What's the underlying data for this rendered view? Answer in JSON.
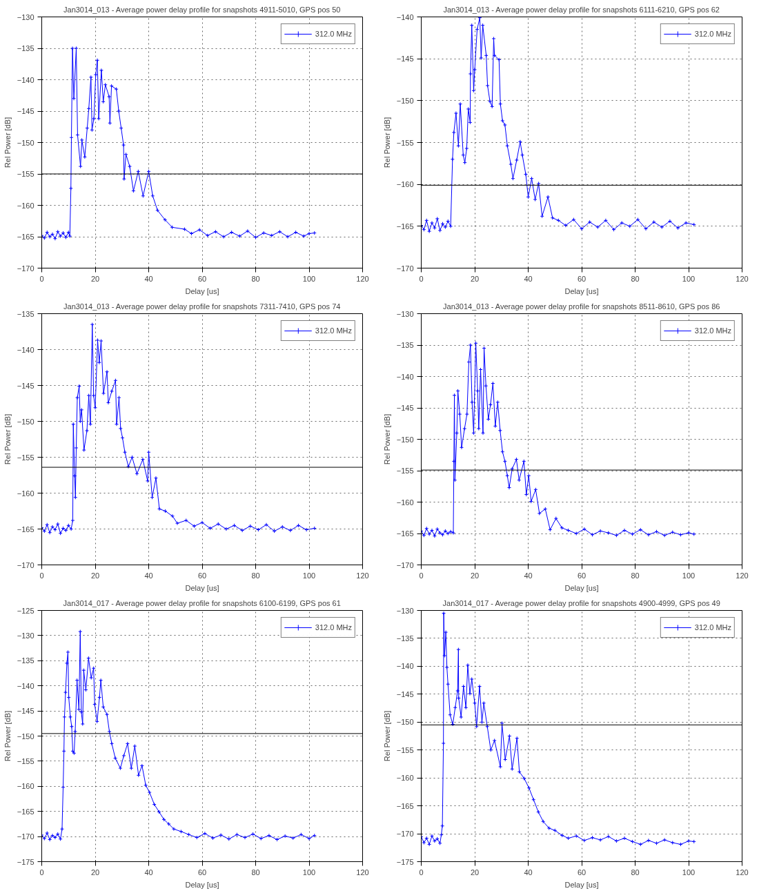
{
  "chart_data": [
    {
      "type": "line",
      "title": "Jan3014_013 - Average power delay profile for snapshots 4911-5010, GPS pos 50",
      "xlabel": "Delay [us]",
      "ylabel": "Rel Power [dB]",
      "xlim": [
        0,
        120
      ],
      "xticks": [
        0,
        20,
        40,
        60,
        80,
        100,
        120
      ],
      "ylim": [
        -170,
        -130
      ],
      "yticks": [
        -170,
        -165,
        -160,
        -155,
        -150,
        -145,
        -140,
        -135,
        -130
      ],
      "grid": true,
      "legend": "top right",
      "marker": "cross",
      "line_style": "solid",
      "ref_lines": [
        {
          "axis": "y",
          "value": -155,
          "color": "#000000"
        }
      ],
      "series": [
        {
          "name": "312.0 MHz",
          "color": "#0000ff",
          "x": [
            0,
            1,
            2,
            3,
            4,
            5,
            6,
            7,
            8,
            9,
            10,
            10.5,
            10.9,
            11.1,
            11.5,
            12,
            12.9,
            13.4,
            14.5,
            15,
            16.1,
            17,
            17.6,
            18.4,
            18.8,
            19.5,
            20.2,
            20.8,
            21.3,
            22.3,
            23,
            23.8,
            25.2,
            25.5,
            26.1,
            27.9,
            28.8,
            29.7,
            30.6,
            30.8,
            31.5,
            32.9,
            34.3,
            36.1,
            37.9,
            40,
            41.5,
            43.3,
            46.1,
            48.8,
            53.4,
            56,
            59,
            62,
            65,
            68,
            71,
            74,
            77,
            80,
            83,
            86,
            89,
            92,
            95,
            98,
            100,
            102
          ],
          "values": [
            -164.8,
            -165.2,
            -164.3,
            -165,
            -164.6,
            -165.3,
            -164.2,
            -164.9,
            -164.4,
            -165.1,
            -164.3,
            -164.9,
            -157.3,
            -149.2,
            -135,
            -143,
            -135,
            -148.8,
            -153.8,
            -149.6,
            -152.3,
            -147.7,
            -144.6,
            -139.6,
            -148,
            -146.2,
            -139.2,
            -136.9,
            -146.2,
            -138.5,
            -143.5,
            -140.8,
            -142.7,
            -146.9,
            -141,
            -141.5,
            -145,
            -147.7,
            -150.4,
            -155.8,
            -151.9,
            -153.8,
            -157.7,
            -154.6,
            -158.5,
            -154.6,
            -158.5,
            -160.8,
            -162.3,
            -163.5,
            -163.8,
            -164.5,
            -163.9,
            -164.8,
            -164.2,
            -165,
            -164.3,
            -164.9,
            -164.1,
            -165.1,
            -164.4,
            -164.8,
            -164.2,
            -165,
            -164.3,
            -164.9,
            -164.5,
            -164.4
          ]
        }
      ]
    },
    {
      "type": "line",
      "title": "Jan3014_013 - Average power delay profile for snapshots 6111-6210, GPS pos 62",
      "xlabel": "Delay [us]",
      "ylabel": "Rel Power [dB]",
      "xlim": [
        0,
        120
      ],
      "xticks": [
        0,
        20,
        40,
        60,
        80,
        100,
        120
      ],
      "ylim": [
        -170,
        -140
      ],
      "yticks": [
        -170,
        -165,
        -160,
        -155,
        -150,
        -145,
        -140
      ],
      "grid": true,
      "legend": "top right",
      "marker": "cross",
      "line_style": "solid",
      "ref_lines": [
        {
          "axis": "y",
          "value": -160.1,
          "color": "#000000"
        }
      ],
      "series": [
        {
          "name": "312.0 MHz",
          "color": "#0000ff",
          "x": [
            0,
            1,
            2,
            3,
            4,
            5,
            6,
            7,
            8,
            9,
            10,
            11,
            11.7,
            12.2,
            13,
            13.9,
            14.6,
            15.7,
            16.3,
            17,
            17.6,
            18.3,
            18.4,
            18.9,
            19.6,
            20,
            20.9,
            21.9,
            22.4,
            23,
            24.3,
            24.8,
            25.7,
            26.5,
            27.1,
            27.4,
            29.1,
            29.6,
            30.4,
            31.3,
            32.2,
            33.5,
            34.3,
            35.7,
            37,
            37.8,
            39.1,
            40,
            41.3,
            42.6,
            43.9,
            45.2,
            47.4,
            49.1,
            51.3,
            54,
            57,
            60,
            63,
            66,
            69,
            72,
            75,
            78,
            81,
            84,
            87,
            90,
            93,
            96,
            99,
            102
          ],
          "values": [
            -164.9,
            -165.4,
            -164.3,
            -165.6,
            -164.6,
            -165.2,
            -164.1,
            -165.5,
            -164.7,
            -165.1,
            -164.4,
            -165,
            -157,
            -153.8,
            -151.5,
            -155.4,
            -150.4,
            -156.5,
            -157.4,
            -155.7,
            -151,
            -152.6,
            -146.8,
            -141,
            -148.8,
            -146.3,
            -141.5,
            -140.1,
            -144.9,
            -141,
            -144.6,
            -148.2,
            -150.1,
            -150.7,
            -142.6,
            -144.6,
            -145.1,
            -150.4,
            -152.4,
            -152.9,
            -155.4,
            -157.6,
            -159.3,
            -157.1,
            -154.9,
            -156.5,
            -158.8,
            -161.5,
            -159.3,
            -161.8,
            -159.9,
            -163.8,
            -161.5,
            -164,
            -164.3,
            -164.9,
            -164.2,
            -165.3,
            -164.5,
            -165.1,
            -164.3,
            -165.4,
            -164.6,
            -165,
            -164.2,
            -165.3,
            -164.5,
            -165.1,
            -164.4,
            -165.2,
            -164.6,
            -164.8
          ]
        }
      ]
    },
    {
      "type": "line",
      "title": "Jan3014_013 - Average power delay profile for snapshots 7311-7410, GPS pos 74",
      "xlabel": "Delay [us]",
      "ylabel": "Rel Power [dB]",
      "xlim": [
        0,
        120
      ],
      "xticks": [
        0,
        20,
        40,
        60,
        80,
        100,
        120
      ],
      "ylim": [
        -170,
        -135
      ],
      "yticks": [
        -170,
        -165,
        -160,
        -155,
        -150,
        -145,
        -140,
        -135
      ],
      "grid": true,
      "legend": "top right",
      "marker": "cross",
      "line_style": "solid",
      "ref_lines": [
        {
          "axis": "y",
          "value": -156.4,
          "color": "#000000"
        }
      ],
      "series": [
        {
          "name": "312.0 MHz",
          "color": "#0000ff",
          "x": [
            0,
            1,
            2,
            3,
            4,
            5,
            6,
            7,
            8,
            9,
            10,
            11,
            11.6,
            11.8,
            12.3,
            12.6,
            12.9,
            13.3,
            14,
            14.4,
            14.9,
            15.8,
            16.9,
            17.6,
            18.2,
            18.9,
            19.4,
            20,
            20.9,
            21.5,
            22.2,
            23.1,
            24.4,
            24.9,
            26.2,
            27.6,
            28,
            28.9,
            29.5,
            30.2,
            31.1,
            32.4,
            33.8,
            35.6,
            37.8,
            39.6,
            40,
            41.3,
            42.7,
            44,
            46.2,
            48.9,
            50.7,
            54,
            57,
            60,
            63,
            66,
            69,
            72,
            75,
            78,
            81,
            84,
            87,
            90,
            93,
            96,
            99,
            102
          ],
          "values": [
            -164.8,
            -165.3,
            -164.4,
            -165.5,
            -164.7,
            -165.1,
            -164.3,
            -165.6,
            -164.9,
            -165.2,
            -164.5,
            -165,
            -163.8,
            -150.4,
            -157.6,
            -160.6,
            -153.7,
            -146.7,
            -145.1,
            -150,
            -148.4,
            -154,
            -151.3,
            -146.4,
            -150.4,
            -136.5,
            -146.4,
            -148.1,
            -138.7,
            -141.8,
            -138.8,
            -146.1,
            -143.1,
            -147.4,
            -145.8,
            -144.3,
            -150.4,
            -146.7,
            -151,
            -152.3,
            -154.3,
            -156.3,
            -155,
            -157.3,
            -155.3,
            -158.3,
            -154.3,
            -160.6,
            -157.9,
            -162.2,
            -162.5,
            -163.2,
            -164.2,
            -163.8,
            -164.6,
            -164.1,
            -164.9,
            -164.3,
            -165,
            -164.5,
            -165.2,
            -164.6,
            -165.1,
            -164.4,
            -165.3,
            -164.7,
            -165.2,
            -164.5,
            -165.1,
            -164.9
          ]
        }
      ]
    },
    {
      "type": "line",
      "title": "Jan3014_013 - Average power delay profile for snapshots 8511-8610, GPS pos 86",
      "xlabel": "Delay [us]",
      "ylabel": "Rel Power [dB]",
      "xlim": [
        0,
        120
      ],
      "xticks": [
        0,
        20,
        40,
        60,
        80,
        100,
        120
      ],
      "ylim": [
        -170,
        -130
      ],
      "yticks": [
        -170,
        -165,
        -160,
        -155,
        -150,
        -145,
        -140,
        -135,
        -130
      ],
      "grid": true,
      "legend": "top right",
      "marker": "cross",
      "line_style": "solid",
      "ref_lines": [
        {
          "axis": "y",
          "value": -154.9,
          "color": "#000000"
        }
      ],
      "series": [
        {
          "name": "312.0 MHz",
          "color": "#0000ff",
          "x": [
            0,
            1,
            2,
            3,
            4,
            5,
            6,
            7,
            8,
            9,
            10,
            11,
            12,
            12.2,
            12.4,
            12.6,
            13.3,
            13.7,
            14.4,
            15.1,
            16.2,
            17.1,
            17.8,
            18.4,
            19,
            19.6,
            20.4,
            21.1,
            21.5,
            22.2,
            23.1,
            23.5,
            24.2,
            25.1,
            25.9,
            26.8,
            27.7,
            28.6,
            29.5,
            30.4,
            31.3,
            32.2,
            32.9,
            34,
            35.6,
            36.6,
            38.4,
            39.3,
            40.2,
            41.1,
            42.8,
            44.2,
            46.4,
            48.2,
            50.4,
            52.6,
            55,
            58,
            61,
            64,
            67,
            70,
            73,
            76,
            79,
            82,
            85,
            88,
            91,
            94,
            97,
            100,
            102
          ],
          "values": [
            -164.6,
            -165.3,
            -164.2,
            -165.1,
            -164.5,
            -165.4,
            -164.3,
            -164.9,
            -165.2,
            -164.6,
            -165,
            -164.7,
            -164.9,
            -153.5,
            -143,
            -156.5,
            -149,
            -142.3,
            -146,
            -151.3,
            -148.3,
            -146,
            -137.7,
            -135,
            -144.1,
            -149,
            -134.7,
            -142.3,
            -148.3,
            -138.9,
            -149,
            -135.5,
            -141.5,
            -146.8,
            -144.5,
            -141.1,
            -147.9,
            -144.1,
            -148.6,
            -152,
            -153.5,
            -155.8,
            -157.7,
            -154.7,
            -153.2,
            -156.5,
            -153.5,
            -158.8,
            -155.8,
            -159.9,
            -158,
            -161.8,
            -161.1,
            -164.4,
            -162.6,
            -164.1,
            -164.5,
            -165,
            -164.3,
            -165.2,
            -164.6,
            -164.9,
            -165.3,
            -164.5,
            -165.1,
            -164.4,
            -165.2,
            -164.7,
            -165.3,
            -164.8,
            -165.2,
            -164.9,
            -165.1
          ]
        }
      ]
    },
    {
      "type": "line",
      "title": "Jan3014_017 - Average power delay profile for snapshots 6100-6199, GPS pos 61",
      "xlabel": "Delay [us]",
      "ylabel": "Rel Power [dB]",
      "xlim": [
        0,
        120
      ],
      "xticks": [
        0,
        20,
        40,
        60,
        80,
        100,
        120
      ],
      "ylim": [
        -175,
        -125
      ],
      "yticks": [
        -175,
        -170,
        -165,
        -160,
        -155,
        -150,
        -145,
        -140,
        -135,
        -130,
        -125
      ],
      "grid": true,
      "legend": "top right",
      "marker": "cross",
      "line_style": "solid",
      "ref_lines": [
        {
          "axis": "y",
          "value": -149.5,
          "color": "#000000"
        }
      ],
      "series": [
        {
          "name": "312.0 MHz",
          "color": "#0000ff",
          "x": [
            0,
            1,
            2,
            3,
            4,
            5,
            6,
            7,
            7.6,
            8,
            8.3,
            8.5,
            8.9,
            9.4,
            9.8,
            10.1,
            10.7,
            11.2,
            11.6,
            12.1,
            12.5,
            13.2,
            13.9,
            14.4,
            14.8,
            15.3,
            15.7,
            16.5,
            17.5,
            18.5,
            19.4,
            19.8,
            20.7,
            21.6,
            22.1,
            23,
            24.4,
            25.3,
            26.2,
            27.5,
            29.4,
            30.7,
            32.1,
            33.5,
            34.8,
            36.2,
            37.5,
            38.9,
            40.3,
            42.1,
            43.9,
            45.7,
            47.5,
            49.4,
            52.1,
            55,
            58,
            61,
            64,
            67,
            70,
            73,
            76,
            79,
            82,
            85,
            88,
            91,
            94,
            97,
            100,
            102
          ],
          "values": [
            -169.7,
            -170.4,
            -169.3,
            -170.6,
            -169.8,
            -170.2,
            -169.5,
            -170.5,
            -168.5,
            -160.2,
            -153,
            -146.2,
            -141.3,
            -135.5,
            -133.3,
            -142.3,
            -146.2,
            -148.1,
            -153,
            -153.4,
            -149.1,
            -138.9,
            -144.7,
            -129.2,
            -145.2,
            -147.6,
            -136.9,
            -140.8,
            -134.5,
            -138.4,
            -136.5,
            -143.7,
            -147.1,
            -142.3,
            -138.9,
            -144.2,
            -145.7,
            -149.1,
            -151.5,
            -154.4,
            -156.4,
            -153.9,
            -151.5,
            -156.4,
            -152,
            -157.8,
            -155.9,
            -159.8,
            -161.2,
            -163.6,
            -165.1,
            -166.6,
            -167.5,
            -168.5,
            -169,
            -169.6,
            -170.2,
            -169.4,
            -170.3,
            -169.7,
            -170.5,
            -169.6,
            -170.2,
            -169.5,
            -170.4,
            -169.8,
            -170.6,
            -169.9,
            -170.3,
            -169.6,
            -170.4,
            -169.8
          ]
        }
      ]
    },
    {
      "type": "line",
      "title": "Jan3014_017 - Average power delay profile for snapshots 4900-4999, GPS pos 49",
      "xlabel": "Delay [us]",
      "ylabel": "Rel Power [dB]",
      "xlim": [
        0,
        120
      ],
      "xticks": [
        0,
        20,
        40,
        60,
        80,
        100,
        120
      ],
      "ylim": [
        -175,
        -130
      ],
      "yticks": [
        -175,
        -170,
        -165,
        -160,
        -155,
        -150,
        -145,
        -140,
        -135,
        -130
      ],
      "grid": true,
      "legend": "top right",
      "marker": "cross",
      "line_style": "solid",
      "ref_lines": [
        {
          "axis": "y",
          "value": -150.5,
          "color": "#000000"
        }
      ],
      "series": [
        {
          "name": "312.0 MHz",
          "color": "#0000ff",
          "x": [
            0,
            1,
            2,
            3,
            4,
            5,
            6,
            7,
            7.5,
            7.9,
            8.3,
            8.4,
            8.7,
            9.2,
            9.6,
            10,
            10.8,
            11.8,
            12.7,
            13.6,
            13.9,
            14,
            14.9,
            15.8,
            16.7,
            17.4,
            18.2,
            18.9,
            20,
            20.7,
            21.8,
            22.7,
            23.4,
            24.7,
            26,
            27.4,
            29.6,
            30.2,
            31.4,
            33,
            34,
            35.8,
            36.7,
            38.5,
            40.3,
            42,
            43.8,
            45.6,
            47.8,
            50,
            52.7,
            55,
            58,
            61,
            64,
            67,
            70,
            73,
            76,
            79,
            82,
            85,
            88,
            91,
            94,
            97,
            100,
            102
          ],
          "values": [
            -170.5,
            -171.6,
            -170.8,
            -171.9,
            -170.4,
            -171.3,
            -170.9,
            -171.7,
            -170.2,
            -168.6,
            -153.8,
            -130.5,
            -138.1,
            -133.9,
            -140.2,
            -143.2,
            -148.7,
            -150.4,
            -147.4,
            -144.4,
            -137,
            -145.7,
            -149.1,
            -143.6,
            -147.4,
            -139.8,
            -144.9,
            -142.3,
            -146.6,
            -150.8,
            -143.6,
            -150,
            -146.6,
            -150.8,
            -155,
            -153.3,
            -158,
            -150.2,
            -156.7,
            -152.5,
            -158.4,
            -152.9,
            -158.9,
            -160.1,
            -161.8,
            -163.9,
            -166.1,
            -167.8,
            -169,
            -169.4,
            -170.3,
            -170.8,
            -170.4,
            -171.2,
            -170.7,
            -171.1,
            -170.5,
            -171.3,
            -170.8,
            -171.4,
            -171.9,
            -171.2,
            -171.7,
            -171.1,
            -171.6,
            -171.9,
            -171.3,
            -171.4
          ]
        }
      ]
    }
  ]
}
